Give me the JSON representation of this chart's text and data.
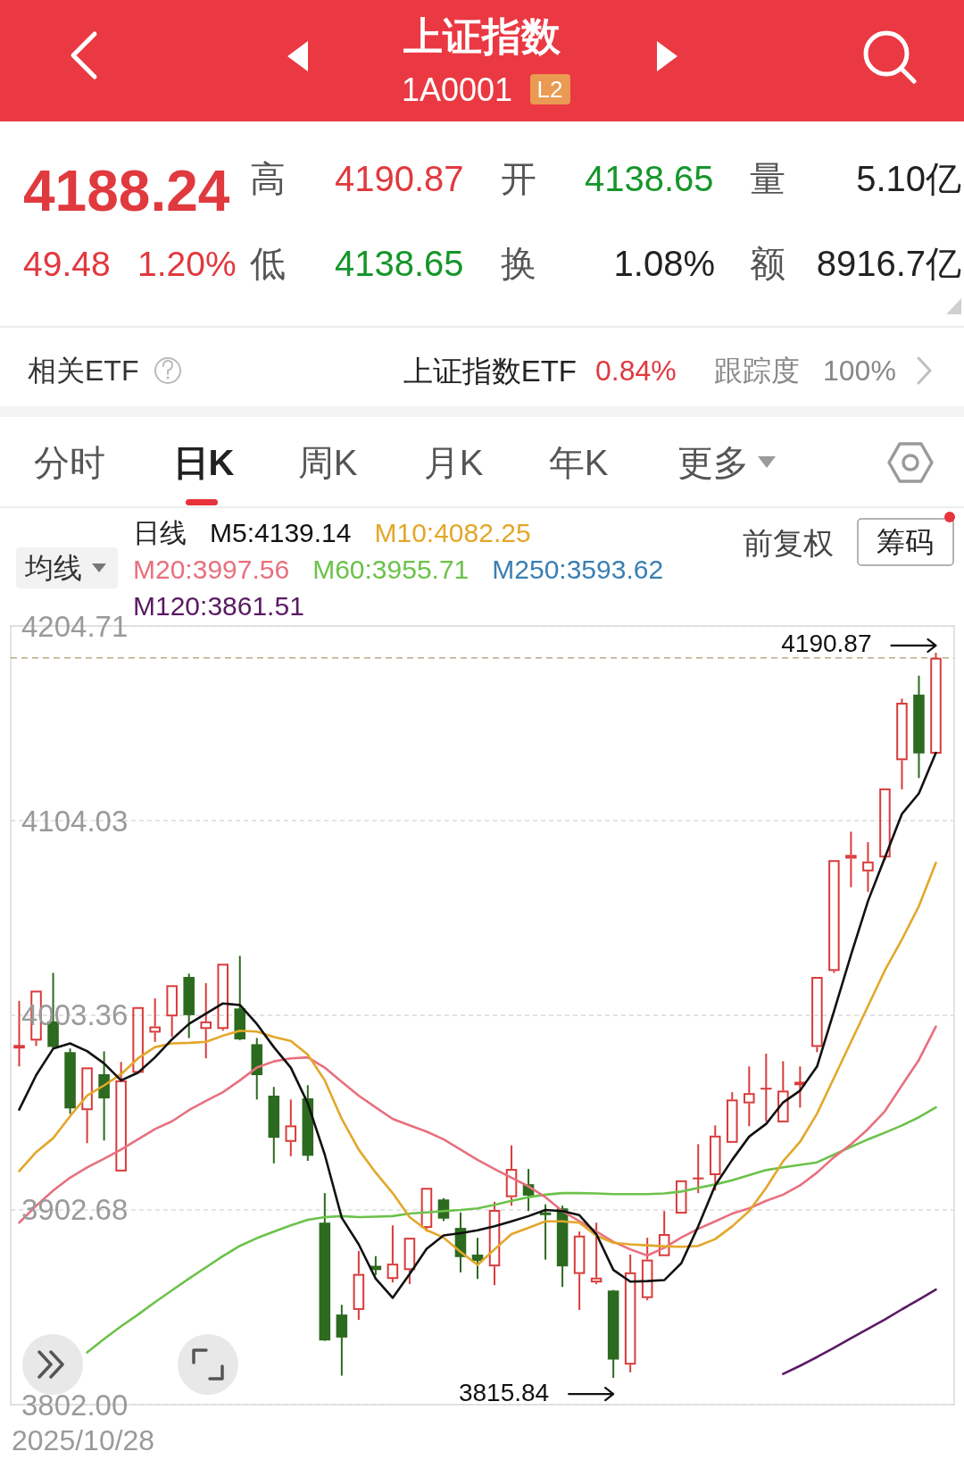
{
  "chart_data": {
    "type": "candlestick",
    "title": "上证指数",
    "subtitle": "1A0001",
    "categories": [
      null,
      null,
      null,
      null,
      null,
      null,
      null,
      null,
      null,
      null,
      null,
      null,
      null,
      null,
      null,
      null,
      null,
      null,
      null,
      null,
      null,
      null,
      null,
      null,
      null,
      null,
      null,
      null,
      null,
      null,
      null,
      null,
      null,
      null,
      null,
      null,
      null,
      null,
      null,
      null,
      null,
      null,
      null,
      null,
      null,
      null,
      null,
      null,
      null,
      null,
      null,
      null,
      null,
      null,
      null
    ],
    "ohlc": [
      [
        3986.2,
        4010.8,
        3976.9,
        3988.0
      ],
      [
        3990.3,
        4016.1,
        3987.5,
        4016.1
      ],
      [
        4000.2,
        4025.3,
        3986.5,
        3987.0
      ],
      [
        3984.3,
        3986.2,
        3952.4,
        3955.2
      ],
      [
        3954.3,
        3976.4,
        3937.2,
        3976.4
      ],
      [
        3972.9,
        3984.7,
        3938.6,
        3960.4
      ],
      [
        3922.6,
        3979.2,
        3922.6,
        3969.7
      ],
      [
        3973.6,
        4007.6,
        3973.6,
        4007.6
      ],
      [
        3994.4,
        4012.1,
        3989.6,
        3997.6
      ],
      [
        4002.8,
        4018.9,
        3992.2,
        4018.9
      ],
      [
        4023.2,
        4024.9,
        3991.6,
        4003.4
      ],
      [
        3996.3,
        4020.0,
        3981.1,
        4000.2
      ],
      [
        3996.3,
        4030.0,
        3995.4,
        4030.0
      ],
      [
        4006.9,
        4034.1,
        3990.5,
        3990.9
      ],
      [
        3988.4,
        3991.6,
        3959.8,
        3972.4
      ],
      [
        3961.8,
        3966.3,
        3926.8,
        3940.0
      ],
      [
        3937.9,
        3959.8,
        3930.5,
        3946.4
      ],
      [
        3960.4,
        3967.2,
        3928.1,
        3930.7
      ],
      [
        3896.1,
        3911.4,
        3835.0,
        3835.2
      ],
      [
        3848.6,
        3853.6,
        3817.0,
        3836.7
      ],
      [
        3851.0,
        3881.5,
        3845.8,
        3869.6
      ],
      [
        3873.8,
        3878.8,
        3869.0,
        3871.6
      ],
      [
        3867.0,
        3894.7,
        3865.2,
        3874.9
      ],
      [
        3871.6,
        3888.3,
        3864.3,
        3888.3
      ],
      [
        3893.4,
        3914.1,
        3891.5,
        3914.1
      ],
      [
        3908.1,
        3908.8,
        3897.0,
        3898.2
      ],
      [
        3893.4,
        3901.4,
        3870.4,
        3878.3
      ],
      [
        3879.6,
        3888.3,
        3867.0,
        3876.3
      ],
      [
        3873.5,
        3906.9,
        3863.8,
        3902.7
      ],
      [
        3909.3,
        3936.1,
        3904.9,
        3923.9
      ],
      [
        3916.0,
        3923.9,
        3902.1,
        3910.1
      ],
      [
        3901.4,
        3905.6,
        3877.0,
        3900.0
      ],
      [
        3903.5,
        3904.9,
        3862.9,
        3873.5
      ],
      [
        3869.6,
        3891.5,
        3851.0,
        3889.4
      ],
      [
        3865.2,
        3896.1,
        3864.3,
        3867.7
      ],
      [
        3861.0,
        3861.3,
        3815.84,
        3825.3
      ],
      [
        3822.7,
        3879.6,
        3818.7,
        3870.4
      ],
      [
        3857.1,
        3888.3,
        3856.0,
        3877.0
      ],
      [
        3878.8,
        3902.1,
        3878.8,
        3890.2
      ],
      [
        3900.8,
        3918.0,
        3900.8,
        3918.0
      ],
      [
        3918.6,
        3936.7,
        3911.4,
        3919.4
      ],
      [
        3920.7,
        3946.4,
        3912.7,
        3941.1
      ],
      [
        3937.4,
        3963.6,
        3937.4,
        3959.8
      ],
      [
        3957.8,
        3976.9,
        3946.0,
        3963.1
      ],
      [
        3965.0,
        3983.5,
        3948.5,
        3965.8
      ],
      [
        3948.0,
        3979.6,
        3948.0,
        3964.4
      ],
      [
        3967.2,
        3976.9,
        3955.6,
        3969.0
      ],
      [
        3987.0,
        4023.2,
        3984.3,
        4023.2
      ],
      [
        4026.3,
        4083.6,
        4025.3,
        4083.6
      ],
      [
        4084.4,
        4098.3,
        4069.6,
        4086.3
      ],
      [
        4077.8,
        4092.9,
        4067.2,
        4082.9
      ],
      [
        4085.0,
        4120.7,
        4083.6,
        4120.7
      ],
      [
        4135.3,
        4167.1,
        4120.2,
        4165.0
      ],
      [
        4169.2,
        4179.0,
        4126.1,
        4138.8
      ],
      [
        4138.65,
        4190.87,
        4138.65,
        4188.24
      ]
    ],
    "colors": [
      "#d93b3b",
      "#d93b3b",
      "#2c6a1f",
      "#2c6a1f",
      "#d93b3b",
      "#2c6a1f",
      "#d93b3b",
      "#d93b3b",
      "#d93b3b",
      "#d93b3b",
      "#2c6a1f",
      "#d93b3b",
      "#d93b3b",
      "#2c6a1f",
      "#2c6a1f",
      "#2c6a1f",
      "#d93b3b",
      "#2c6a1f",
      "#2c6a1f",
      "#2c6a1f",
      "#d93b3b",
      "#2c6a1f",
      "#d93b3b",
      "#d93b3b",
      "#d93b3b",
      "#2c6a1f",
      "#2c6a1f",
      "#2c6a1f",
      "#d93b3b",
      "#d93b3b",
      "#2c6a1f",
      "#2c6a1f",
      "#2c6a1f",
      "#d93b3b",
      "#d93b3b",
      "#2c6a1f",
      "#d93b3b",
      "#d93b3b",
      "#d93b3b",
      "#d93b3b",
      "#d93b3b",
      "#d93b3b",
      "#d93b3b",
      "#d93b3b",
      "#d93b3b",
      "#d93b3b",
      "#d93b3b",
      "#d93b3b",
      "#d93b3b",
      "#d93b3b",
      "#d93b3b",
      "#d93b3b",
      "#d93b3b",
      "#2c6a1f",
      "#d93b3b"
    ],
    "ylim": [
      3802,
      4204.71
    ],
    "yticks": [
      {
        "value": 3802,
        "label": "3802.00"
      },
      3902.68,
      4003.36,
      4104.03,
      4204.71
    ],
    "grid": "y",
    "ref_lines": [
      {
        "axis": "y",
        "value": 4188.24,
        "color": "#b8ab84",
        "line_style": "dashed"
      }
    ],
    "legend": "top left",
    "legend_title": "日线",
    "series": [
      {
        "type": "line",
        "name": "M5:4139.14",
        "color": "#111111",
        "values": [
          3954.6,
          3972.4,
          3986.1,
          3988.8,
          3984.8,
          3978.5,
          3969.7,
          3973.7,
          3981.6,
          3990.9,
          3998.9,
          4004.2,
          4009.5,
          4008.7,
          3998.9,
          3986.9,
          3976.3,
          3957.8,
          3931.3,
          3898.7,
          3884.9,
          3867.2,
          3857.2,
          3869.5,
          3882.6,
          3889.5,
          3890.7,
          3892.2,
          3894.3,
          3896.8,
          3899.5,
          3902.7,
          3902.1,
          3900.0,
          3890.2,
          3871.7,
          3865.6,
          3865.9,
          3866.4,
          3875.1,
          3894.2,
          3915.4,
          3928.6,
          3940.6,
          3947.2,
          3958.3,
          3964.4,
          3976.9,
          4005.5,
          4034.6,
          4062.4,
          4085.0,
          4107.5,
          4118.1,
          4139.14
        ]
      },
      {
        "type": "line",
        "name": "M10:4082.25",
        "color": "#e3a72a",
        "values": [
          3922.8,
          3932.6,
          3939.8,
          3951.2,
          3961.8,
          3967.1,
          3972.9,
          3981.1,
          3986.9,
          3988.8,
          3989.1,
          3989.6,
          3992.8,
          3995.4,
          3994.9,
          3992.2,
          3990.1,
          3983.0,
          3969.7,
          3949.8,
          3933.9,
          3922.0,
          3911.4,
          3899.0,
          3892.3,
          3888.4,
          3881.0,
          3874.3,
          3882.3,
          3890.2,
          3893.4,
          3896.8,
          3896.8,
          3896.1,
          3889.4,
          3885.7,
          3884.9,
          3884.4,
          3883.9,
          3883.6,
          3884.1,
          3887.6,
          3894.2,
          3902.1,
          3914.1,
          3927.9,
          3937.9,
          3952.5,
          3971.0,
          3989.6,
          4008.1,
          4026.7,
          4042.6,
          4059.8,
          4082.25
        ]
      },
      {
        "type": "line",
        "name": "M20:3997.56",
        "color": "#e8707e",
        "values": [
          3896.1,
          3904.8,
          3912.7,
          3919.4,
          3924.7,
          3929.2,
          3933.9,
          3939.2,
          3944.5,
          3948.5,
          3954.3,
          3959.1,
          3963.6,
          3969.7,
          3976.3,
          3979.5,
          3981.1,
          3981.6,
          3976.3,
          3968.9,
          3961.8,
          3955.7,
          3949.8,
          3946.4,
          3943.2,
          3939.2,
          3933.9,
          3928.6,
          3923.9,
          3919.4,
          3914.9,
          3909.3,
          3902.1,
          3896.8,
          3891.5,
          3886.2,
          3882.3,
          3879.1,
          3883.1,
          3888.4,
          3892.9,
          3896.8,
          3900.8,
          3903.5,
          3907.4,
          3910.6,
          3915.4,
          3922.0,
          3930.0,
          3936.6,
          3944.5,
          3953.8,
          3967.1,
          3980.3,
          3997.56
        ]
      },
      {
        "type": "line",
        "name": "M60:3955.71",
        "color": "#6cc24a",
        "values": [
          null,
          null,
          null,
          null,
          3829.0,
          3835.9,
          3842.5,
          3848.6,
          3855.0,
          3861.1,
          3867.2,
          3873.0,
          3878.8,
          3884.1,
          3888.1,
          3891.5,
          3894.7,
          3897.6,
          3899.0,
          3899.5,
          3899.0,
          3899.2,
          3899.5,
          3900.8,
          3901.4,
          3902.1,
          3902.7,
          3903.5,
          3905.3,
          3907.4,
          3909.3,
          3910.6,
          3911.4,
          3911.4,
          3911.2,
          3910.9,
          3910.9,
          3910.9,
          3911.2,
          3912.2,
          3914.1,
          3915.9,
          3918.0,
          3920.7,
          3923.3,
          3924.7,
          3926.0,
          3927.3,
          3931.3,
          3935.3,
          3939.2,
          3942.7,
          3946.4,
          3950.6,
          3955.71
        ]
      },
      {
        "type": "line",
        "name": "M250:3593.62",
        "color": "#3a7fb3",
        "values": [
          null,
          null,
          null,
          null,
          null,
          null,
          null,
          null,
          null,
          null,
          null,
          null,
          null,
          null,
          null,
          null,
          null,
          null,
          null,
          null,
          null,
          null,
          null,
          null,
          null,
          null,
          null,
          null,
          null,
          null,
          null,
          null,
          null,
          null,
          null,
          null,
          null,
          null,
          null,
          null,
          null,
          null,
          null,
          null,
          null,
          null,
          null,
          null,
          null,
          null,
          null,
          null,
          null,
          null,
          null
        ]
      },
      {
        "type": "line",
        "name": "M120:3861.51",
        "color": "#5a1a63",
        "values": [
          null,
          null,
          null,
          null,
          null,
          null,
          null,
          null,
          null,
          null,
          null,
          null,
          null,
          null,
          null,
          null,
          null,
          null,
          null,
          null,
          null,
          null,
          null,
          null,
          null,
          null,
          null,
          null,
          null,
          null,
          null,
          null,
          null,
          null,
          null,
          null,
          null,
          null,
          null,
          null,
          null,
          null,
          null,
          null,
          null,
          3817.9,
          3822.1,
          3826.6,
          3831.4,
          3836.4,
          3841.2,
          3846.0,
          3851.3,
          3856.3,
          3861.51
        ]
      }
    ],
    "annotations": [
      "4190.87",
      "3815.84",
      "2025/10/28",
      "L2",
      "4188.24",
      "高",
      "4190.87",
      "开",
      "4138.65",
      "量",
      "5.10亿",
      "49.48",
      "1.20%",
      "低",
      "4138.65",
      "换",
      "1.08%",
      "额",
      "8916.7亿",
      "相关ETF",
      "上证指数ETF",
      "0.84%",
      "跟踪度",
      "100%",
      "分时",
      "日K",
      "周K",
      "月K",
      "年K",
      "更多",
      "均线",
      "前复权",
      "筹码"
    ]
  }
}
